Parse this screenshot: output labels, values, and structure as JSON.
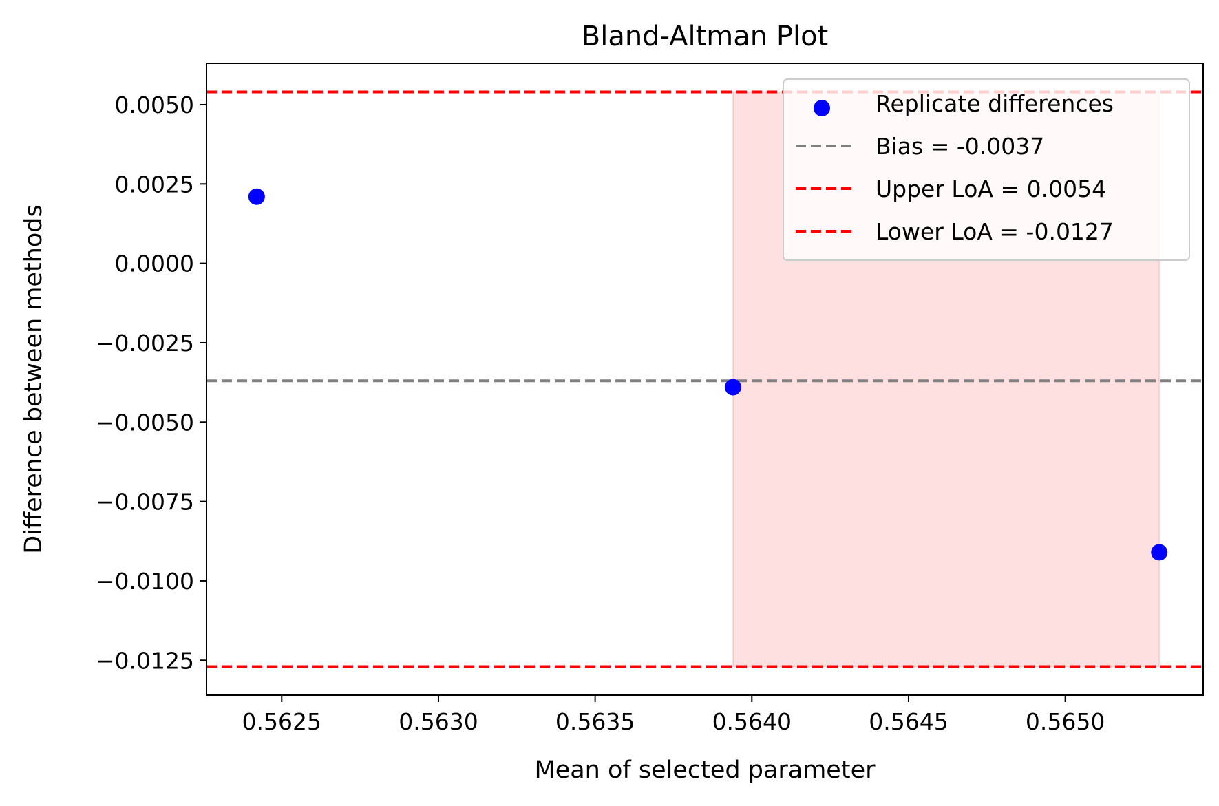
{
  "chart_data": {
    "type": "scatter",
    "title": "Bland-Altman Plot",
    "xlabel": "Mean of selected parameter",
    "ylabel": "Difference between methods",
    "xlim": [
      0.56226,
      0.56544
    ],
    "ylim": [
      -0.0136,
      0.0063
    ],
    "xticks": [
      0.5625,
      0.563,
      0.5635,
      0.564,
      0.5645,
      0.565
    ],
    "xtick_labels": [
      "0.5625",
      "0.5630",
      "0.5635",
      "0.5640",
      "0.5645",
      "0.5650"
    ],
    "yticks": [
      0.005,
      0.0025,
      0.0,
      -0.0025,
      -0.005,
      -0.0075,
      -0.01,
      -0.0125
    ],
    "ytick_labels": [
      "0.0050",
      "0.0025",
      "0.0000",
      "−0.0025",
      "−0.0050",
      "−0.0075",
      "−0.0100",
      "−0.0125"
    ],
    "grid": false,
    "legend_position": "top-right",
    "series": [
      {
        "name": "Replicate differences",
        "kind": "scatter",
        "color": "#0000ff",
        "x": [
          0.56242,
          0.56394,
          0.5653
        ],
        "y": [
          0.0021,
          -0.0039,
          -0.0091
        ]
      }
    ],
    "reference_lines": [
      {
        "name": "Bias = -0.0037",
        "y": -0.0037,
        "color": "#808080",
        "style": "dashed"
      },
      {
        "name": "Upper LoA = 0.0054",
        "y": 0.0054,
        "color": "#ff0000",
        "style": "dashed"
      },
      {
        "name": "Lower LoA = -0.0127",
        "y": -0.0127,
        "color": "#ff0000",
        "style": "dashed"
      }
    ],
    "shaded_region": {
      "x_range": [
        0.56394,
        0.5653
      ],
      "y_range": [
        -0.0127,
        0.0054
      ],
      "color": "#ff0000",
      "opacity": 0.12
    }
  }
}
